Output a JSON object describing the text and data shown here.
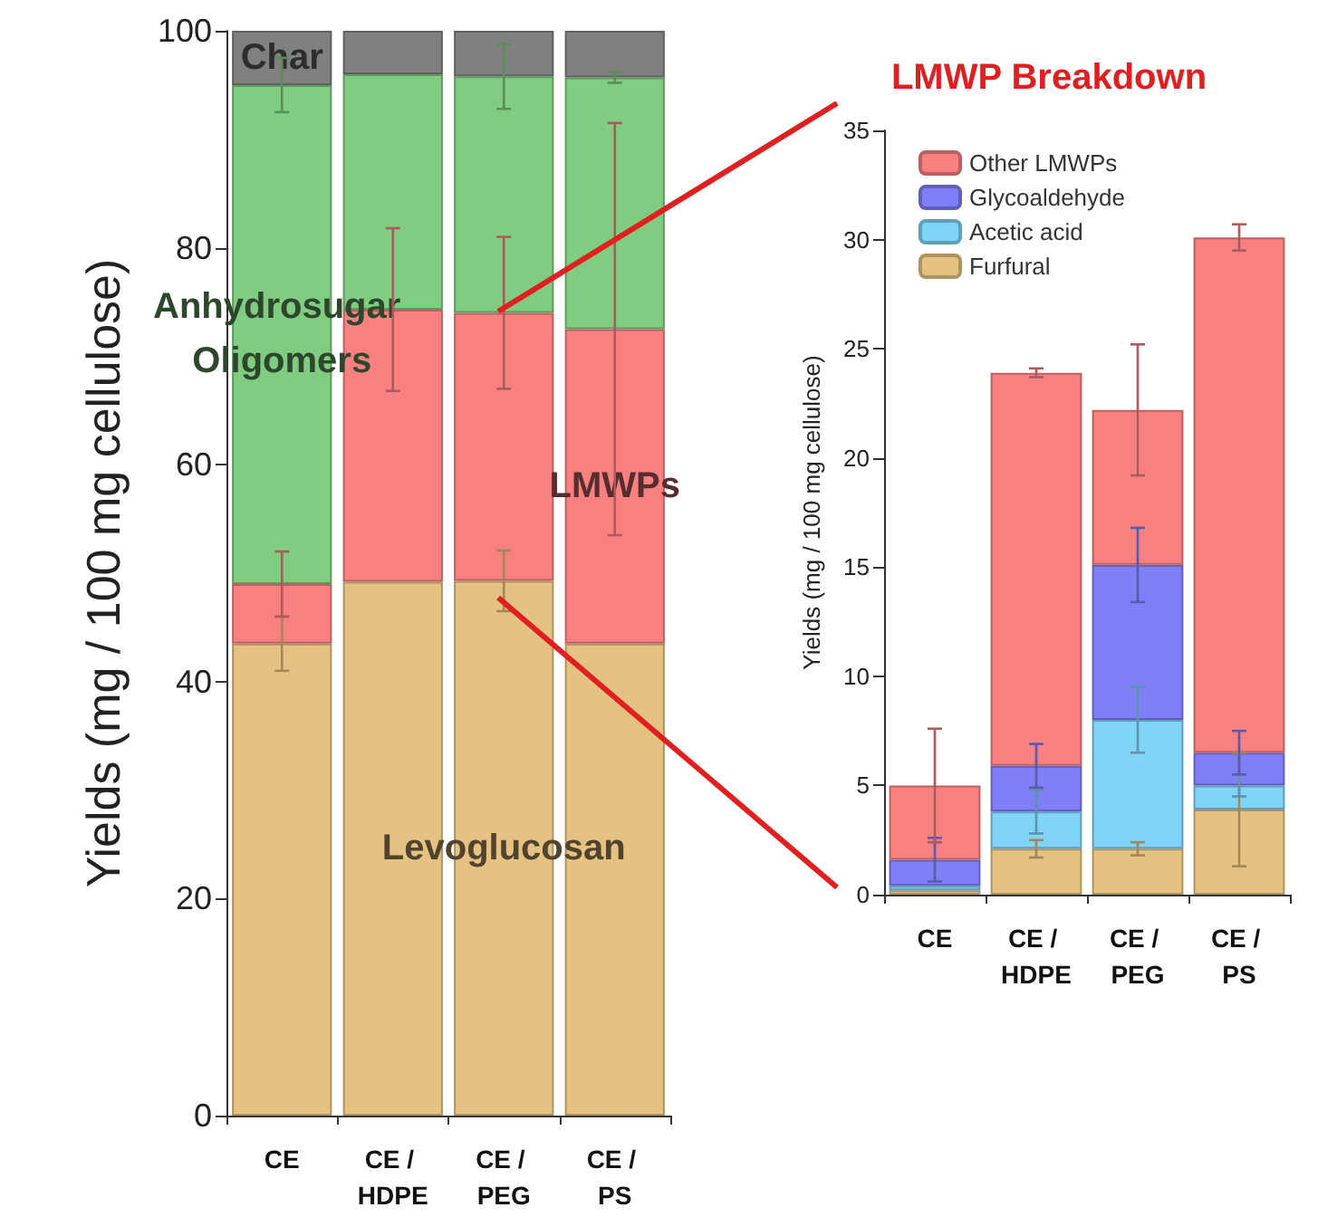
{
  "chart_data": [
    {
      "type": "bar",
      "stacked": true,
      "ylabel": "Yields (mg / 100 mg cellulose)",
      "categories": [
        "CE",
        "CE / HDPE",
        "CE / PEG",
        "CE / PS"
      ],
      "ylim": [
        0,
        100
      ],
      "yticks": [
        0,
        20,
        40,
        60,
        80,
        100
      ],
      "grid": false,
      "legend": false,
      "series": [
        {
          "name": "Levoglucosan",
          "color": "#e6c282",
          "values": [
            43.5,
            49.2,
            49.3,
            43.5
          ],
          "errors": [
            2.5,
            null,
            2.8,
            null
          ]
        },
        {
          "name": "LMWPs",
          "color": "#f98080",
          "values": [
            5.5,
            25.1,
            24.7,
            29
          ],
          "errors": [
            3,
            7.5,
            7,
            19
          ]
        },
        {
          "name": "Anhydrosugar Oligomers",
          "color": "#80cc80",
          "values": [
            46,
            21.7,
            21.8,
            23.2
          ],
          "errors": [
            2.5,
            null,
            3,
            0.5
          ]
        },
        {
          "name": "Char",
          "color": "#808080",
          "values": [
            5,
            4,
            4.2,
            4.3
          ]
        }
      ]
    },
    {
      "type": "bar",
      "stacked": true,
      "title": "LMWP Breakdown",
      "ylabel": "Yields (mg / 100 mg cellulose)",
      "categories": [
        "CE",
        "CE / HDPE",
        "CE / PEG",
        "CE / PS"
      ],
      "ylim": [
        0,
        35
      ],
      "yticks": [
        0,
        5,
        10,
        15,
        20,
        25,
        30,
        35
      ],
      "grid": false,
      "legend": "top left",
      "series": [
        {
          "name": "Furfural",
          "color": "#e6c282",
          "values": [
            0.2,
            2.1,
            2.1,
            3.9
          ],
          "errors": [
            null,
            0.4,
            0.3,
            2.6
          ]
        },
        {
          "name": "Acetic acid",
          "color": "#80d4f8",
          "values": [
            0.2,
            1.7,
            5.9,
            1.1
          ],
          "errors": [
            null,
            1,
            1.5,
            0.5
          ]
        },
        {
          "name": "Glycoaldehyde",
          "color": "#7f7ff8",
          "values": [
            1.2,
            2.1,
            7.1,
            1.5
          ],
          "errors": [
            1,
            1,
            1.7,
            1
          ]
        },
        {
          "name": "Other LMWPs",
          "color": "#f98080",
          "values": [
            3.4,
            18,
            7.1,
            23.6
          ],
          "errors": [
            2.6,
            0.2,
            3,
            0.6
          ]
        }
      ]
    }
  ]
}
